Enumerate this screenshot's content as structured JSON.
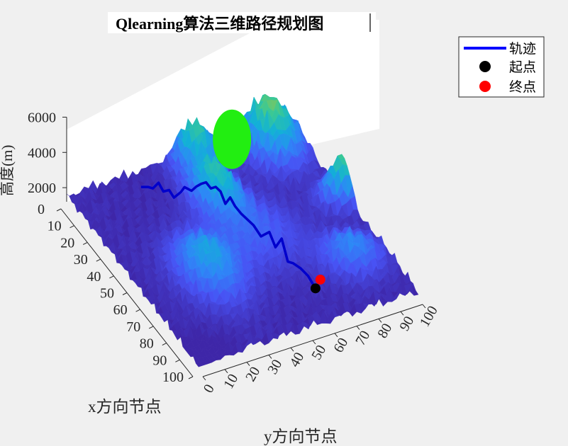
{
  "chart_data": {
    "type": "surface3d",
    "title": "Qlearning算法三维路径规划图",
    "xlabel": "x方向节点",
    "ylabel": "y方向节点",
    "zlabel": "高度(m)",
    "x_ticks": [
      "0",
      "10",
      "20",
      "30",
      "40",
      "50",
      "60",
      "70",
      "80",
      "90",
      "100"
    ],
    "y_ticks": [
      "0",
      "10",
      "20",
      "30",
      "40",
      "50",
      "60",
      "70",
      "80",
      "90",
      "100"
    ],
    "z_ticks": [
      "2000",
      "4000",
      "6000"
    ],
    "xlim": [
      0,
      100
    ],
    "ylim": [
      0,
      100
    ],
    "zlim": [
      1200,
      6000
    ],
    "grid": false,
    "legend_position": "top-right",
    "legend": [
      {
        "label": "轨迹",
        "marker": "line",
        "color": "#0000ff"
      },
      {
        "label": "起点",
        "marker": "dot",
        "color": "#000000"
      },
      {
        "label": "终点",
        "marker": "dot",
        "color": "#ff0000"
      }
    ],
    "obstacle_color": "#22ee11",
    "colormap": "parula",
    "path": {
      "x": [
        8,
        10,
        12,
        13,
        15,
        16,
        18,
        20,
        21,
        23,
        25,
        27,
        29,
        31,
        33,
        35,
        37,
        39,
        41,
        44,
        47,
        50,
        54,
        57,
        60,
        63,
        66,
        70,
        74,
        78,
        82
      ],
      "y": [
        29,
        31,
        32,
        34,
        35,
        37,
        38,
        40,
        41,
        43,
        44,
        45,
        46,
        47,
        48,
        49,
        50,
        51,
        52,
        53,
        54,
        55,
        56,
        58,
        59,
        60,
        61,
        61,
        62,
        63,
        64
      ]
    },
    "start": {
      "x": 82,
      "y": 64
    },
    "end": {
      "x": 84,
      "y": 65
    }
  }
}
